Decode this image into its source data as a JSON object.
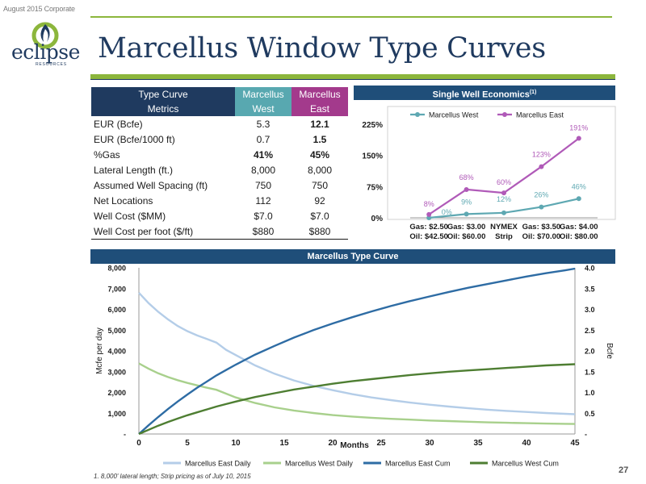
{
  "header": {
    "corporate_label": "August 2015 Corporate",
    "title": "Marcellus Window Type Curves",
    "logo_text": "eclipse",
    "logo_subtext": "RESOURCES"
  },
  "metrics_table": {
    "header": {
      "label_line1": "Type Curve",
      "label_line2": "Metrics",
      "west_line1": "Marcellus",
      "west_line2": "West",
      "east_line1": "Marcellus",
      "east_line2": "East"
    },
    "rows": [
      {
        "label": "EUR (Bcfe)",
        "west": "5.3",
        "east": "12.1"
      },
      {
        "label": "EUR (Bcfe/1000 ft)",
        "west": "0.7",
        "east": "1.5"
      },
      {
        "label": "%Gas",
        "west": "41%",
        "east": "45%"
      },
      {
        "label": "Lateral Length (ft.)",
        "west": "8,000",
        "east": "8,000"
      },
      {
        "label": "Assumed Well Spacing (ft)",
        "west": "750",
        "east": "750"
      },
      {
        "label": "Net Locations",
        "west": "112",
        "east": "92"
      },
      {
        "label": "Well Cost ($MM)",
        "west": "$7.0",
        "east": "$7.0"
      },
      {
        "label": "Well Cost per foot ($/ft)",
        "west": "$880",
        "east": "$880"
      }
    ]
  },
  "economics_header": {
    "text": "Single Well Economics",
    "sup": "(1)"
  },
  "type_curve_header": {
    "text": "Marcellus Type Curve"
  },
  "footnote": "1. 8,000' lateral length; Strip pricing as of July 10, 2015",
  "page_number": "27",
  "colors": {
    "navy": "#1f3a5f",
    "green_band": "#8cb63c",
    "west_teal": "#5ea8b2",
    "east_purple": "#b05ab8",
    "east_daily": "#b4cde8",
    "west_daily": "#a8d08c",
    "east_cum": "#2e6ca4",
    "west_cum": "#4e7e32"
  },
  "chart_data": [
    {
      "type": "line",
      "categories": [
        {
          "line1": "Gas: $2.50",
          "line2": "Oil: $42.50"
        },
        {
          "line1": "Gas: $3.00",
          "line2": "Oil: $60.00"
        },
        {
          "line1": "NYMEX",
          "line2": "Strip"
        },
        {
          "line1": "Gas: $3.50",
          "line2": "Oil: $70.00"
        },
        {
          "line1": "Gas: $4.00",
          "line2": "Oil: $80.00"
        }
      ],
      "series": [
        {
          "name": "Marcellus West",
          "values": [
            0,
            9,
            12,
            26,
            46
          ],
          "labels": [
            "0%",
            "9%",
            "12%",
            "26%",
            "46%"
          ]
        },
        {
          "name": "Marcellus East",
          "values": [
            8,
            68,
            60,
            123,
            191
          ],
          "labels": [
            "8%",
            "68%",
            "60%",
            "123%",
            "191%"
          ]
        }
      ],
      "ylim": [
        0,
        225
      ],
      "yticks": [
        0,
        75,
        150,
        225
      ],
      "ytick_labels": [
        "0%",
        "75%",
        "150%",
        "225%"
      ],
      "legend_position": "top"
    },
    {
      "type": "line",
      "xlabel": "Months",
      "ylabel_left": "Mcfe per day",
      "ylabel_right": "Bcfe",
      "xlim": [
        0,
        45
      ],
      "xticks": [
        0,
        5,
        10,
        15,
        20,
        25,
        30,
        35,
        40,
        45
      ],
      "ylim_left": [
        0,
        8000
      ],
      "yticks_left_labels": [
        "-",
        "1,000",
        "2,000",
        "3,000",
        "4,000",
        "5,000",
        "6,000",
        "7,000",
        "8,000"
      ],
      "ylim_right": [
        0,
        4.0
      ],
      "yticks_right_labels": [
        "-",
        "0.5",
        "1.0",
        "1.5",
        "2.0",
        "2.5",
        "3.0",
        "3.5",
        "4.0"
      ],
      "legend_position": "bottom",
      "x": [
        0,
        1,
        2,
        3,
        4,
        5,
        6,
        7,
        8,
        9,
        10,
        12,
        14,
        16,
        18,
        20,
        22,
        24,
        26,
        28,
        30,
        32,
        34,
        36,
        38,
        40,
        42,
        44,
        45
      ],
      "series": [
        {
          "name": "Marcellus East Daily",
          "axis": "left",
          "values": [
            6800,
            6300,
            5880,
            5520,
            5200,
            4950,
            4750,
            4580,
            4400,
            4050,
            3800,
            3300,
            2900,
            2580,
            2320,
            2110,
            1920,
            1760,
            1630,
            1510,
            1410,
            1320,
            1240,
            1170,
            1110,
            1060,
            1010,
            970,
            950
          ]
        },
        {
          "name": "Marcellus West Daily",
          "axis": "left",
          "values": [
            3400,
            3140,
            2920,
            2740,
            2590,
            2460,
            2340,
            2230,
            2130,
            1940,
            1760,
            1490,
            1280,
            1130,
            1010,
            910,
            840,
            780,
            730,
            690,
            650,
            620,
            590,
            560,
            540,
            520,
            500,
            490,
            480
          ]
        },
        {
          "name": "Marcellus East Cum",
          "axis": "right",
          "values": [
            0,
            0.21,
            0.41,
            0.6,
            0.78,
            0.95,
            1.11,
            1.26,
            1.41,
            1.54,
            1.67,
            1.91,
            2.12,
            2.32,
            2.5,
            2.66,
            2.81,
            2.95,
            3.08,
            3.2,
            3.31,
            3.42,
            3.52,
            3.61,
            3.7,
            3.79,
            3.87,
            3.94,
            3.98
          ]
        },
        {
          "name": "Marcellus West Cum",
          "axis": "right",
          "values": [
            0,
            0.1,
            0.2,
            0.29,
            0.37,
            0.45,
            0.52,
            0.59,
            0.66,
            0.72,
            0.78,
            0.89,
            0.98,
            1.07,
            1.14,
            1.21,
            1.27,
            1.32,
            1.37,
            1.42,
            1.46,
            1.5,
            1.53,
            1.56,
            1.59,
            1.62,
            1.65,
            1.67,
            1.68
          ]
        }
      ]
    }
  ]
}
